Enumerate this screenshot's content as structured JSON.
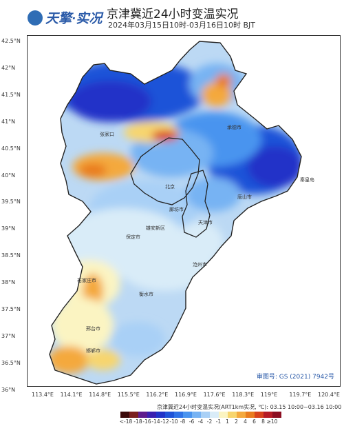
{
  "header": {
    "logo_text": "天擎·实况",
    "title": "京津冀近24小时变温实况",
    "subtitle": "2024年03月15日10时-03月16日10时 BJT"
  },
  "y_ticks": [
    "42.5°N",
    "42°N",
    "41.5°N",
    "41°N",
    "40.5°N",
    "40°N",
    "39.5°N",
    "39°N",
    "38.5°N",
    "38°N",
    "37.5°N",
    "37°N",
    "36.5°N",
    "36°N"
  ],
  "x_ticks": [
    "113.4°E",
    "114.1°E",
    "114.8°E",
    "115.5°E",
    "116.2°E",
    "116.9°E",
    "117.6°E",
    "118.3°E",
    "119°E",
    "119.7°E",
    "120.4°E"
  ],
  "cities": {
    "zhangjiakou": "张家口",
    "chengde": "承德市",
    "tangshan": "唐山市",
    "qinhuangdao": "秦皇岛",
    "beijing": "北京",
    "tianjin": "天津市",
    "baoding": "保定市",
    "xiongan": "雄安新区",
    "cangzhou": "沧州市",
    "shijiazhuang": "石家庄市",
    "hengshui": "衡水市",
    "xingtai": "邢台市",
    "handan": "邯郸市",
    "langfang": "廊坊市"
  },
  "approval": "审图号: GS (2021) 7942号",
  "legend": {
    "title": "京津冀近24小时变温实况(ART1km实况, ℃): 03.15 10:00~03.16 10:00",
    "colors": [
      "#3b0a0a",
      "#7a1e1e",
      "#5e1a8c",
      "#3a1fb0",
      "#2133c8",
      "#1f53d8",
      "#2f72e6",
      "#4a94ef",
      "#77b3f3",
      "#a9d0f6",
      "#d9ecf8",
      "#fbf4c2",
      "#f7d56e",
      "#f4a93e",
      "#e97c1f",
      "#d8431c",
      "#b61c26",
      "#8c0e21"
    ],
    "labels": [
      "<-18",
      "-18",
      "-16",
      "-14",
      "-12",
      "-10",
      "-8",
      "-6",
      "-4",
      "-2",
      "-1",
      "1",
      "2",
      "4",
      "6",
      "8",
      "≥10"
    ]
  },
  "colors": {
    "title_blue": "#2a5aa8",
    "border": "#222222"
  }
}
